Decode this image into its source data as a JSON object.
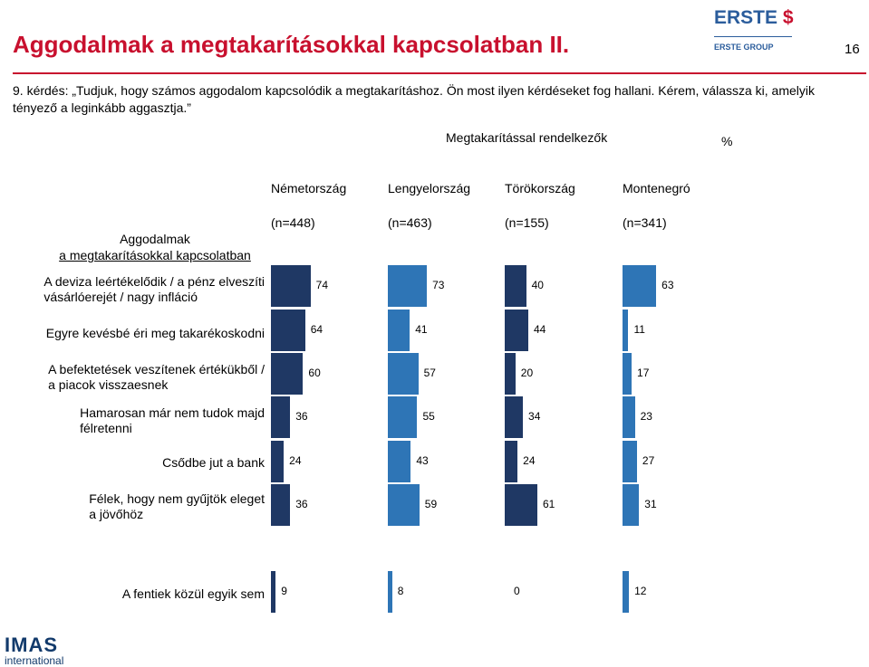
{
  "header": {
    "title": "Aggodalmak a megtakarításokkal kapcsolatban II.",
    "page_number": "16",
    "brand": "ERSTE",
    "brand_sub": "ERSTE GROUP"
  },
  "question": "9. kérdés: „Tudjuk, hogy számos aggodalom kapcsolódik a megtakarításhoz. Ön most ilyen kérdéseket fog hallani. Kérem, válassza ki, amelyik tényező a leginkább aggasztja.”",
  "group_title": "Megtakarítással rendelkezők",
  "unit": "%",
  "row_header": [
    "Aggodalmak",
    "a megtakarításokkal kapcsolatban"
  ],
  "footer": {
    "logo": "IMAS",
    "logo_sub": "international"
  },
  "colors": {
    "dark_blue": "#1f3864",
    "mid_blue": "#2e75b6",
    "red": "#c8102e"
  },
  "chart_data": {
    "type": "bar",
    "orientation": "horizontal",
    "panels": [
      {
        "name": "Németország",
        "n": "(n=448)",
        "color": "#1f3864",
        "values": [
          74,
          64,
          60,
          36,
          24,
          36,
          9
        ]
      },
      {
        "name": "Lengyelország",
        "n": "(n=463)",
        "color": "#2e75b6",
        "values": [
          73,
          41,
          57,
          55,
          43,
          59,
          8
        ]
      },
      {
        "name": "Törökország",
        "n": "(n=155)",
        "color": "#1f3864",
        "values": [
          40,
          44,
          20,
          34,
          24,
          61,
          0
        ]
      },
      {
        "name": "Montenegró",
        "n": "(n=341)",
        "color": "#2e75b6",
        "values": [
          63,
          11,
          17,
          23,
          27,
          31,
          12
        ]
      }
    ],
    "categories": [
      [
        "A deviza leértékelődik / a pénz elveszíti",
        "vásárlóerejét / nagy infláció"
      ],
      [
        "Egyre kevésbé éri meg takarékoskodni"
      ],
      [
        "A befektetések veszítenek értékükből /",
        "a piacok visszaesnek"
      ],
      [
        "Hamarosan már nem tudok majd",
        "félretenni"
      ],
      [
        "Csődbe jut a bank"
      ],
      [
        "Félek, hogy nem gyűjtök eleget",
        "a jövőhöz"
      ],
      [
        "A fentiek közül egyik sem"
      ]
    ],
    "xlim": [
      0,
      100
    ]
  }
}
